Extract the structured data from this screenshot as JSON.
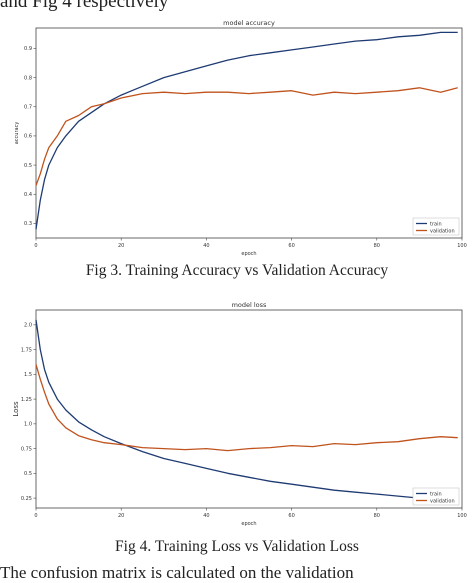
{
  "document": {
    "top_fragment": "and Fig 4 respectively",
    "caption_fig3": "Fig 3. Training Accuracy vs Validation Accuracy",
    "caption_fig4": "Fig 4. Training Loss vs Validation Loss",
    "bottom_fragment": "The confusion matrix is calculated on the validation"
  },
  "colors": {
    "train": "#1f3b73",
    "validation": "#c0531d"
  },
  "chart_data": [
    {
      "type": "line",
      "title": "model accuracy",
      "xlabel": "epoch",
      "ylabel": "accuracy",
      "xlim": [
        0,
        100
      ],
      "ylim": [
        0.25,
        0.97
      ],
      "xticks": [
        0,
        20,
        40,
        60,
        80,
        100
      ],
      "yticks": [
        0.3,
        0.4,
        0.5,
        0.6,
        0.7,
        0.8,
        0.9
      ],
      "grid": false,
      "legend_position": "bottom-right",
      "x": [
        0,
        1,
        2,
        3,
        5,
        7,
        10,
        13,
        16,
        20,
        25,
        30,
        35,
        40,
        45,
        50,
        55,
        60,
        65,
        70,
        75,
        80,
        85,
        90,
        95,
        99
      ],
      "series": [
        {
          "name": "train",
          "values": [
            0.28,
            0.38,
            0.45,
            0.5,
            0.56,
            0.6,
            0.65,
            0.68,
            0.71,
            0.74,
            0.77,
            0.8,
            0.82,
            0.84,
            0.86,
            0.875,
            0.885,
            0.895,
            0.905,
            0.915,
            0.925,
            0.93,
            0.94,
            0.945,
            0.955,
            0.955
          ]
        },
        {
          "name": "validation",
          "values": [
            0.43,
            0.47,
            0.52,
            0.56,
            0.6,
            0.65,
            0.67,
            0.7,
            0.71,
            0.73,
            0.745,
            0.75,
            0.745,
            0.75,
            0.75,
            0.745,
            0.75,
            0.755,
            0.74,
            0.75,
            0.745,
            0.75,
            0.755,
            0.765,
            0.75,
            0.765
          ]
        }
      ]
    },
    {
      "type": "line",
      "title": "model loss",
      "xlabel": "epoch",
      "ylabel": "Loss",
      "xlim": [
        0,
        100
      ],
      "ylim": [
        0.15,
        2.15
      ],
      "xticks": [
        0,
        20,
        40,
        60,
        80,
        100
      ],
      "yticks": [
        0.25,
        0.5,
        0.75,
        1.0,
        1.25,
        1.5,
        1.75,
        2.0
      ],
      "grid": false,
      "legend_position": "bottom-right",
      "x": [
        0,
        1,
        2,
        3,
        5,
        7,
        10,
        13,
        16,
        20,
        25,
        30,
        35,
        40,
        45,
        50,
        55,
        60,
        65,
        70,
        75,
        80,
        85,
        90,
        95,
        99
      ],
      "series": [
        {
          "name": "train",
          "values": [
            2.05,
            1.75,
            1.55,
            1.42,
            1.25,
            1.14,
            1.02,
            0.94,
            0.87,
            0.8,
            0.72,
            0.65,
            0.6,
            0.55,
            0.5,
            0.46,
            0.42,
            0.39,
            0.36,
            0.33,
            0.31,
            0.29,
            0.27,
            0.25,
            0.24,
            0.23
          ]
        },
        {
          "name": "validation",
          "values": [
            1.6,
            1.45,
            1.32,
            1.2,
            1.05,
            0.96,
            0.88,
            0.84,
            0.81,
            0.79,
            0.76,
            0.75,
            0.74,
            0.75,
            0.73,
            0.75,
            0.76,
            0.78,
            0.77,
            0.8,
            0.79,
            0.81,
            0.82,
            0.85,
            0.87,
            0.86
          ]
        }
      ]
    }
  ]
}
